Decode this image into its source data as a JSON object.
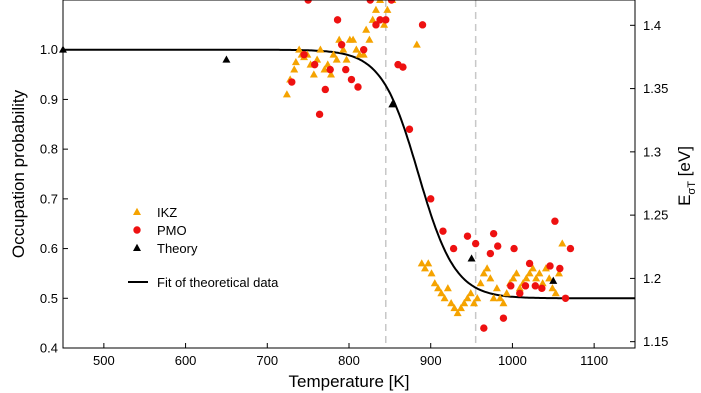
{
  "chart_data": {
    "type": "scatter",
    "xlabel": "Temperature [K]",
    "ylabel": "Occupation probability",
    "y2label_main": "E",
    "y2label_sub": "σT",
    "y2label_unit": " [eV]",
    "xlim": [
      450,
      1150
    ],
    "ylim": [
      0.4,
      1.1
    ],
    "y2lim": [
      1.145,
      1.42
    ],
    "xticks": [
      500,
      600,
      700,
      800,
      900,
      1000,
      1100
    ],
    "yticks": [
      0.4,
      0.5,
      0.6,
      0.7,
      0.8,
      0.9,
      1.0
    ],
    "y2ticks": [
      1.15,
      1.2,
      1.25,
      1.3,
      1.35,
      1.4
    ],
    "ytick_labels": [
      "0.4",
      "0.5",
      "0.6",
      "0.7",
      "0.8",
      "0.9",
      "1.0"
    ],
    "y2tick_labels": [
      "1.15",
      "1.2",
      "1.25",
      "1.3",
      "1.35",
      "1.4"
    ],
    "vlines": [
      845,
      955
    ],
    "fit": {
      "name": "Fit of theoretical data",
      "color": "#000000",
      "model": "logistic",
      "low": 0.5,
      "high": 1.0,
      "center": 885,
      "width": 22.5
    },
    "legend": [
      "IKZ",
      "PMO",
      "Theory",
      "Fit of theoretical data"
    ],
    "legend_position": "lower-left",
    "series": [
      {
        "name": "IKZ",
        "marker": "triangle",
        "color": "#f5a300",
        "axis": "left",
        "points": [
          [
            724,
            0.91
          ],
          [
            728,
            0.94
          ],
          [
            733,
            0.96
          ],
          [
            735,
            0.975
          ],
          [
            739,
            1.0
          ],
          [
            742,
            0.99
          ],
          [
            745,
            0.985
          ],
          [
            749,
            0.99
          ],
          [
            753,
            0.97
          ],
          [
            757,
            0.95
          ],
          [
            761,
            0.98
          ],
          [
            765,
            1.0
          ],
          [
            770,
            0.96
          ],
          [
            774,
            0.97
          ],
          [
            778,
            0.95
          ],
          [
            781,
            0.99
          ],
          [
            785,
            0.98
          ],
          [
            788,
            1.02
          ],
          [
            793,
            1.0
          ],
          [
            797,
            0.98
          ],
          [
            801,
            1.02
          ],
          [
            805,
            1.02
          ],
          [
            809,
            1.0
          ],
          [
            813,
            0.99
          ],
          [
            818,
            0.99
          ],
          [
            821,
            1.04
          ],
          [
            825,
            1.02
          ],
          [
            829,
            1.06
          ],
          [
            833,
            1.08
          ],
          [
            838,
            1.1
          ],
          [
            843,
            1.05
          ],
          [
            847,
            1.08
          ],
          [
            853,
            1.1
          ],
          [
            883,
            1.01
          ],
          [
            889,
            0.57
          ],
          [
            893,
            0.56
          ],
          [
            897,
            0.57
          ],
          [
            901,
            0.55
          ],
          [
            905,
            0.53
          ],
          [
            909,
            0.52
          ],
          [
            913,
            0.51
          ],
          [
            917,
            0.5
          ],
          [
            921,
            0.52
          ],
          [
            925,
            0.49
          ],
          [
            929,
            0.48
          ],
          [
            933,
            0.47
          ],
          [
            937,
            0.48
          ],
          [
            941,
            0.49
          ],
          [
            945,
            0.5
          ],
          [
            949,
            0.51
          ],
          [
            953,
            0.49
          ],
          [
            957,
            0.5
          ],
          [
            961,
            0.53
          ],
          [
            965,
            0.55
          ],
          [
            969,
            0.56
          ],
          [
            973,
            0.54
          ],
          [
            977,
            0.5
          ],
          [
            981,
            0.52
          ],
          [
            985,
            0.5
          ],
          [
            989,
            0.49
          ],
          [
            993,
            0.51
          ],
          [
            997,
            0.53
          ],
          [
            1001,
            0.54
          ],
          [
            1005,
            0.55
          ],
          [
            1009,
            0.52
          ],
          [
            1013,
            0.53
          ],
          [
            1017,
            0.54
          ],
          [
            1021,
            0.55
          ],
          [
            1025,
            0.56
          ],
          [
            1029,
            0.54
          ],
          [
            1033,
            0.55
          ],
          [
            1037,
            0.53
          ],
          [
            1041,
            0.56
          ],
          [
            1045,
            0.54
          ],
          [
            1049,
            0.52
          ],
          [
            1053,
            0.51
          ],
          [
            1057,
            0.55
          ],
          [
            1061,
            0.61
          ]
        ]
      },
      {
        "name": "PMO",
        "marker": "circle",
        "color": "#ee1111",
        "axis": "left",
        "points": [
          [
            730,
            0.935
          ],
          [
            745,
            0.99
          ],
          [
            750,
            1.1
          ],
          [
            758,
            0.97
          ],
          [
            764,
            0.87
          ],
          [
            771,
            0.92
          ],
          [
            777,
            0.96
          ],
          [
            786,
            1.06
          ],
          [
            791,
            1.01
          ],
          [
            796,
            0.96
          ],
          [
            803,
            0.94
          ],
          [
            811,
            0.925
          ],
          [
            818,
            1.0
          ],
          [
            826,
            1.1
          ],
          [
            833,
            1.05
          ],
          [
            838,
            1.06
          ],
          [
            845,
            1.06
          ],
          [
            852,
            1.1
          ],
          [
            860,
            0.97
          ],
          [
            866,
            0.965
          ],
          [
            874,
            0.84
          ],
          [
            890,
            1.05
          ],
          [
            900,
            0.7
          ],
          [
            915,
            0.635
          ],
          [
            928,
            0.6
          ],
          [
            945,
            0.625
          ],
          [
            955,
            0.61
          ],
          [
            965,
            0.44
          ],
          [
            973,
            0.59
          ],
          [
            977,
            0.63
          ],
          [
            982,
            0.605
          ],
          [
            989,
            0.46
          ],
          [
            998,
            0.525
          ],
          [
            1002,
            0.6
          ],
          [
            1009,
            0.51
          ],
          [
            1016,
            0.525
          ],
          [
            1021,
            0.57
          ],
          [
            1028,
            0.525
          ],
          [
            1036,
            0.52
          ],
          [
            1046,
            0.565
          ],
          [
            1052,
            0.655
          ],
          [
            1058,
            0.56
          ],
          [
            1065,
            0.5
          ],
          [
            1071,
            0.6
          ]
        ]
      },
      {
        "name": "Theory",
        "marker": "triangle",
        "color": "#000000",
        "axis": "left",
        "points": [
          [
            450,
            1.0
          ],
          [
            650,
            0.98
          ],
          [
            853,
            0.89
          ],
          [
            950,
            0.58
          ],
          [
            1050,
            0.535
          ]
        ]
      }
    ]
  }
}
